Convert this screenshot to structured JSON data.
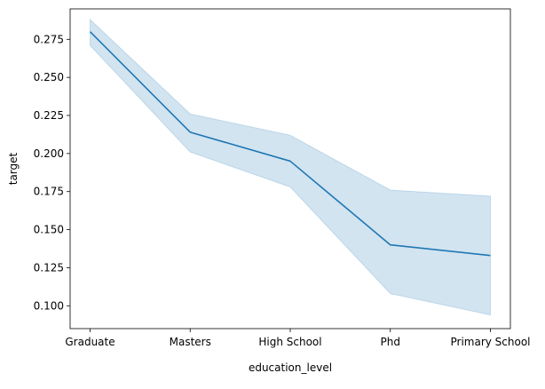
{
  "chart_data": {
    "type": "line",
    "categories": [
      "Graduate",
      "Masters",
      "High School",
      "Phd",
      "Primary School"
    ],
    "series": [
      {
        "values": [
          0.28,
          0.214,
          0.195,
          0.14,
          0.133
        ],
        "ci_lower": [
          0.271,
          0.201,
          0.178,
          0.108,
          0.094
        ],
        "ci_upper": [
          0.288,
          0.226,
          0.212,
          0.176,
          0.172
        ],
        "color": "#1f77b4"
      }
    ],
    "xlabel": "education_level",
    "ylabel": "target",
    "ylim": [
      0.085,
      0.295
    ],
    "yticks": [
      0.1,
      0.125,
      0.15,
      0.175,
      0.2,
      0.225,
      0.25,
      0.275
    ],
    "ytick_labels": [
      "0.100",
      "0.125",
      "0.150",
      "0.175",
      "0.200",
      "0.225",
      "0.250",
      "0.275"
    ],
    "grid": false,
    "band_color": "#1f77b4"
  }
}
